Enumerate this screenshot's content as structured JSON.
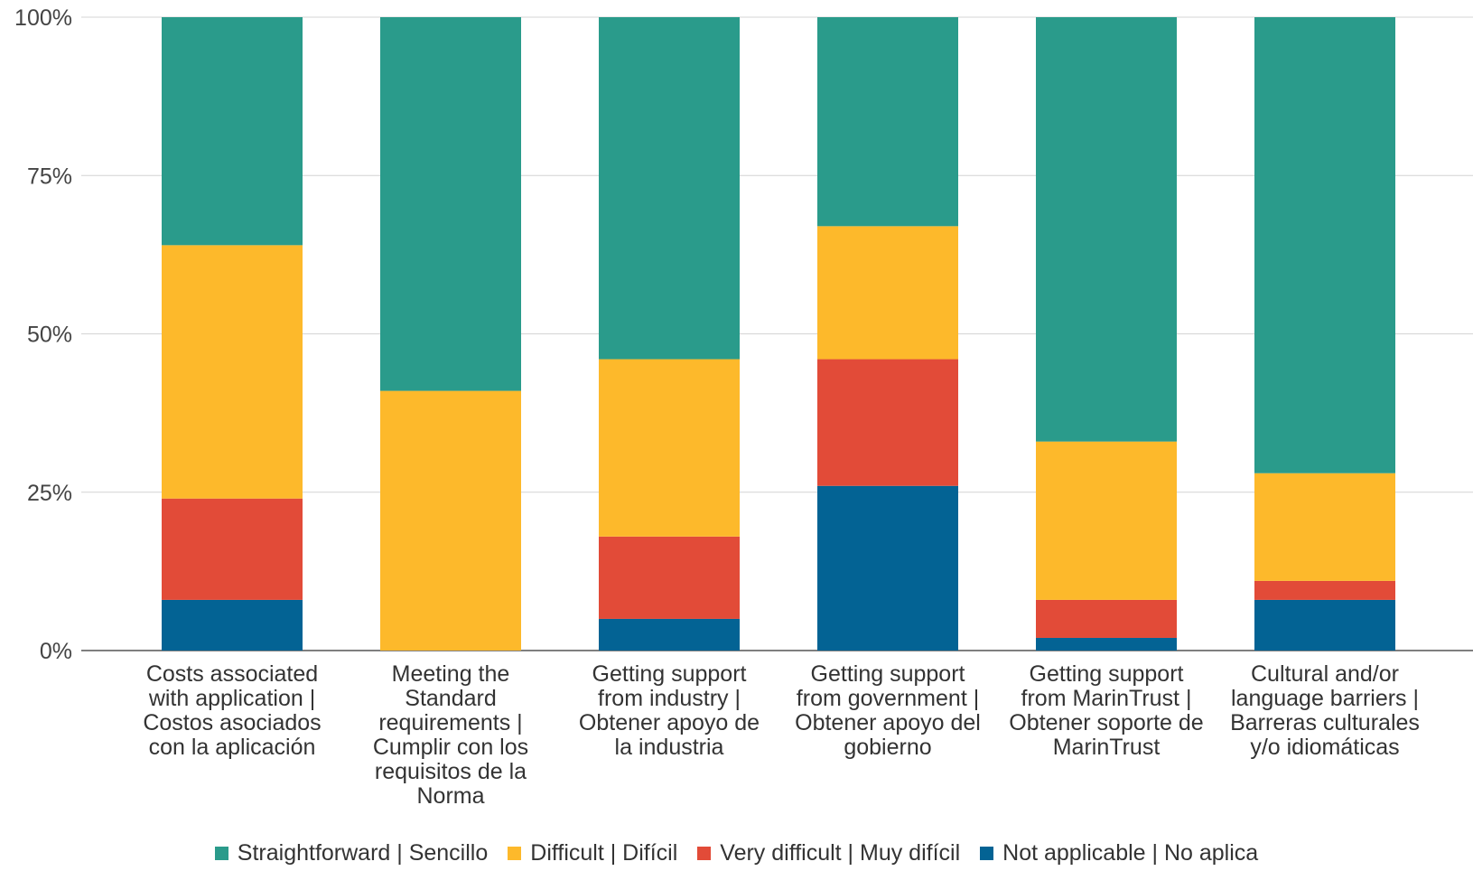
{
  "chart_data": {
    "type": "bar",
    "stacked": true,
    "categories": [
      "Costs associated with application | Costos asociados con la aplicación",
      "Meeting the Standard requirements | Cumplir con los requisitos de la Norma",
      "Getting support from industry | Obtener apoyo de la industria",
      "Getting support from government | Obtener apoyo del gobierno",
      "Getting support from MarinTrust | Obtener soporte de MarinTrust",
      "Cultural and/or language barriers | Barreras culturales y/o idiomáticas"
    ],
    "category_lines": [
      "Costs associated\nwith application |\nCostos asociados\ncon la aplicación",
      "Meeting the\nStandard\nrequirements |\nCumplir con los\nrequisitos de la\nNorma",
      "Getting support\nfrom industry |\nObtener apoyo de\nla industria",
      "Getting support\nfrom government |\nObtener apoyo del\ngobierno",
      "Getting support\nfrom MarinTrust |\nObtener soporte de\nMarinTrust",
      "Cultural and/or\nlanguage barriers |\nBarreras culturales\ny/o idiomáticas"
    ],
    "series": [
      {
        "name": "Not applicable | No aplica",
        "color": "#036394",
        "values": [
          8,
          0,
          5,
          26,
          2,
          8
        ]
      },
      {
        "name": "Very difficult | Muy difícil",
        "color": "#E24B38",
        "values": [
          16,
          0,
          13,
          20,
          6,
          3
        ]
      },
      {
        "name": "Difficult | Difícil",
        "color": "#FDB92B",
        "values": [
          40,
          41,
          28,
          21,
          25,
          17
        ]
      },
      {
        "name": "Straightforward | Sencillo",
        "color": "#2A9B8B",
        "values": [
          36,
          59,
          54,
          33,
          67,
          72
        ]
      }
    ],
    "legend_order": [
      3,
      2,
      1,
      0
    ],
    "y_ticks": [
      "0%",
      "25%",
      "50%",
      "75%",
      "100%"
    ],
    "ylim": [
      0,
      100
    ],
    "grid": true,
    "legend_position": "bottom",
    "title": "",
    "xlabel": "",
    "ylabel": ""
  }
}
